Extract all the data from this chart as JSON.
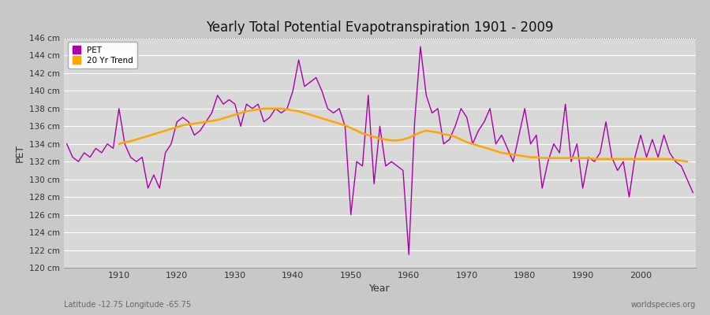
{
  "title": "Yearly Total Potential Evapotranspiration 1901 - 2009",
  "xlabel": "Year",
  "ylabel": "PET",
  "subtitle_left": "Latitude -12.75 Longitude -65.75",
  "subtitle_right": "worldspecies.org",
  "ylim": [
    120,
    146
  ],
  "ytick_step": 2,
  "fig_bg_color": "#c8c8c8",
  "plot_bg_color": "#d8d8d8",
  "pet_color": "#aa00aa",
  "trend_color": "#FFA500",
  "legend_pet": "PET",
  "legend_trend": "20 Yr Trend",
  "years": [
    1901,
    1902,
    1903,
    1904,
    1905,
    1906,
    1907,
    1908,
    1909,
    1910,
    1911,
    1912,
    1913,
    1914,
    1915,
    1916,
    1917,
    1918,
    1919,
    1920,
    1921,
    1922,
    1923,
    1924,
    1925,
    1926,
    1927,
    1928,
    1929,
    1930,
    1931,
    1932,
    1933,
    1934,
    1935,
    1936,
    1937,
    1938,
    1939,
    1940,
    1941,
    1942,
    1943,
    1944,
    1945,
    1946,
    1947,
    1948,
    1949,
    1950,
    1951,
    1952,
    1953,
    1954,
    1955,
    1956,
    1957,
    1958,
    1959,
    1960,
    1961,
    1962,
    1963,
    1964,
    1965,
    1966,
    1967,
    1968,
    1969,
    1970,
    1971,
    1972,
    1973,
    1974,
    1975,
    1976,
    1977,
    1978,
    1979,
    1980,
    1981,
    1982,
    1983,
    1984,
    1985,
    1986,
    1987,
    1988,
    1989,
    1990,
    1991,
    1992,
    1993,
    1994,
    1995,
    1996,
    1997,
    1998,
    1999,
    2000,
    2001,
    2002,
    2003,
    2004,
    2005,
    2006,
    2007,
    2008,
    2009
  ],
  "pet_values": [
    134.0,
    132.5,
    132.0,
    133.0,
    132.5,
    133.5,
    133.0,
    134.0,
    133.5,
    138.0,
    134.0,
    132.5,
    132.0,
    132.5,
    129.0,
    130.5,
    129.0,
    133.0,
    134.0,
    136.5,
    137.0,
    136.5,
    135.0,
    135.5,
    136.5,
    137.5,
    139.5,
    138.5,
    139.0,
    138.5,
    136.0,
    138.5,
    138.0,
    138.5,
    136.5,
    137.0,
    138.0,
    137.5,
    138.0,
    140.0,
    143.5,
    140.5,
    141.0,
    141.5,
    140.0,
    138.0,
    137.5,
    138.0,
    136.0,
    126.0,
    132.0,
    131.5,
    139.5,
    129.5,
    136.0,
    131.5,
    132.0,
    131.5,
    131.0,
    121.5,
    136.5,
    145.0,
    139.5,
    137.5,
    138.0,
    134.0,
    134.5,
    136.0,
    138.0,
    137.0,
    134.0,
    135.5,
    136.5,
    138.0,
    134.0,
    135.0,
    133.5,
    132.0,
    135.0,
    138.0,
    134.0,
    135.0,
    129.0,
    132.0,
    134.0,
    133.0,
    138.5,
    132.0,
    134.0,
    129.0,
    132.5,
    132.0,
    133.0,
    136.5,
    132.5,
    131.0,
    132.0,
    128.0,
    132.5,
    135.0,
    132.5,
    134.5,
    132.5,
    135.0,
    133.0,
    132.0,
    131.5,
    130.0,
    128.5
  ],
  "trend_values": [
    null,
    null,
    null,
    null,
    null,
    null,
    null,
    null,
    null,
    134.0,
    134.2,
    134.3,
    134.5,
    134.7,
    134.9,
    135.1,
    135.3,
    135.5,
    135.7,
    135.9,
    136.1,
    136.2,
    136.3,
    136.4,
    136.5,
    136.6,
    136.7,
    136.9,
    137.1,
    137.3,
    137.5,
    137.7,
    137.8,
    137.9,
    138.0,
    138.0,
    138.0,
    138.0,
    137.9,
    137.8,
    137.7,
    137.5,
    137.3,
    137.1,
    136.9,
    136.7,
    136.5,
    136.3,
    136.1,
    135.8,
    135.5,
    135.2,
    135.0,
    134.8,
    134.6,
    134.5,
    134.4,
    134.4,
    134.5,
    134.7,
    135.0,
    135.3,
    135.5,
    135.4,
    135.3,
    135.1,
    135.0,
    134.8,
    134.5,
    134.2,
    134.0,
    133.8,
    133.6,
    133.4,
    133.2,
    133.0,
    132.9,
    132.8,
    132.7,
    132.6,
    132.5,
    132.5,
    132.4,
    132.4,
    132.4,
    132.4,
    132.4,
    132.4,
    132.4,
    132.4,
    132.4,
    132.3,
    132.3,
    132.3,
    132.3,
    132.3,
    132.3,
    132.3,
    132.3,
    132.3,
    132.3,
    132.3,
    132.3,
    132.3,
    132.3,
    132.2,
    132.1,
    132.0,
    null
  ]
}
